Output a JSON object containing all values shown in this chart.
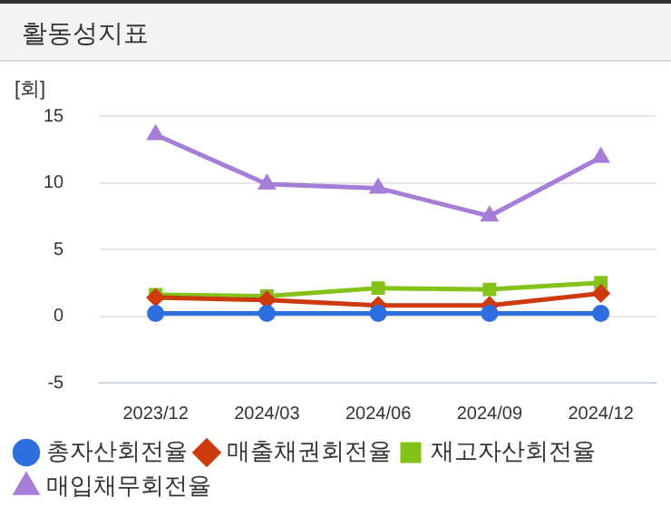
{
  "chart_data": {
    "type": "line",
    "title": "활동성지표",
    "ylabel": "[회]",
    "categories": [
      "2023/12",
      "2024/03",
      "2024/06",
      "2024/09",
      "2024/12"
    ],
    "ylim": [
      -5,
      15
    ],
    "yticks": [
      -5,
      0,
      5,
      10,
      15
    ],
    "grid": "y",
    "legend": "bottom",
    "line_style": "solid",
    "series": [
      {
        "name": "총자산회전율",
        "color": "#2e6fe0",
        "marker": "circle",
        "values": [
          0.2,
          0.2,
          0.2,
          0.2,
          0.2
        ]
      },
      {
        "name": "매출채권회전율",
        "color": "#cc3a0e",
        "marker": "diamond",
        "values": [
          1.4,
          1.2,
          0.8,
          0.8,
          1.7
        ]
      },
      {
        "name": "재고자산회전율",
        "color": "#84c21a",
        "marker": "square",
        "values": [
          1.6,
          1.5,
          2.1,
          2.0,
          2.5
        ]
      },
      {
        "name": "매입채무회전율",
        "color": "#a57ed8",
        "marker": "triangle",
        "values": [
          13.6,
          9.9,
          9.6,
          7.5,
          11.9
        ]
      }
    ]
  }
}
